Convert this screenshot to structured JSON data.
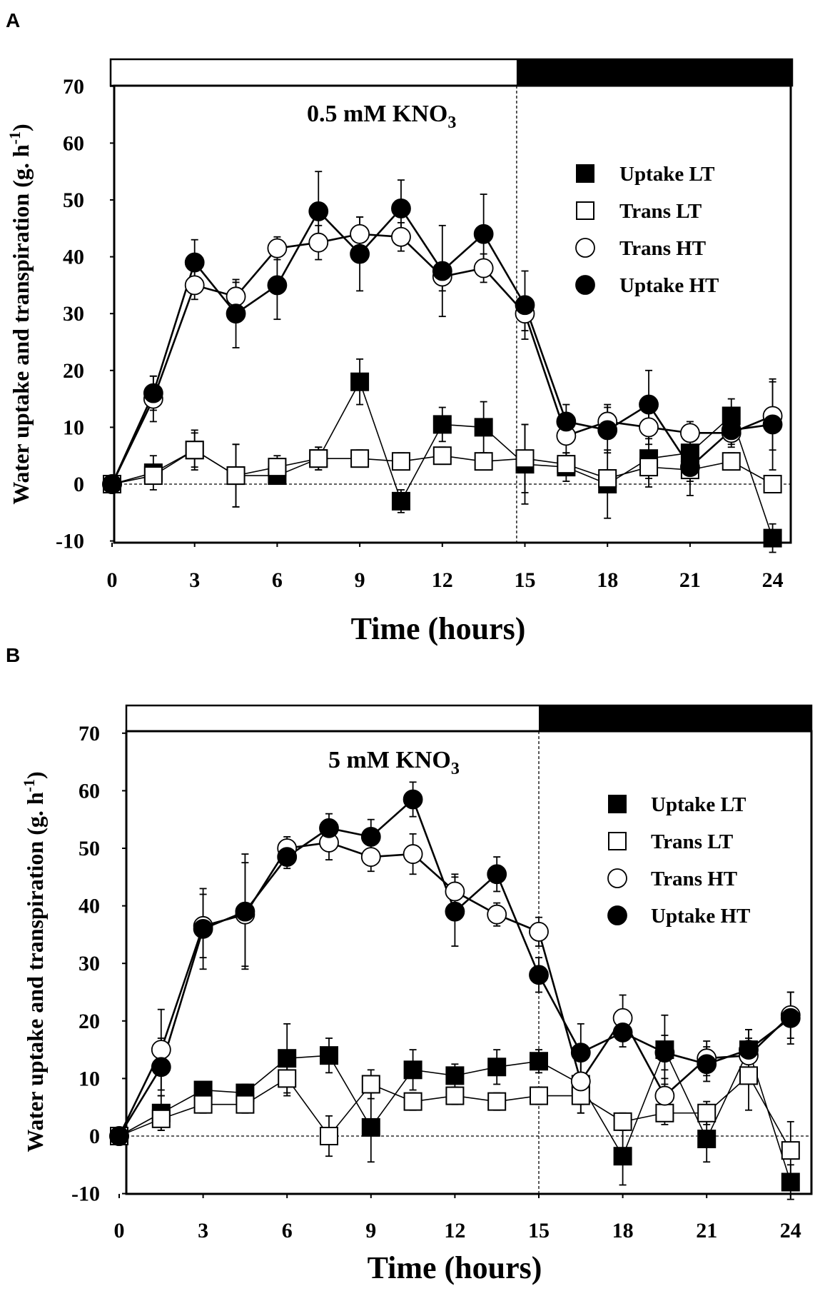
{
  "figure": {
    "panel_labels": [
      "A",
      "B"
    ]
  },
  "colors": {
    "ink": "#000000",
    "paper": "#ffffff"
  },
  "chart_data": [
    {
      "panel": "A",
      "type": "line",
      "annotation": "0.5 mM KNO",
      "annotation_sub": "3",
      "xlabel": "Time (hours)",
      "ylabel": "Water uptake and transpiration (g. h",
      "ylabel_sup": "-1",
      "ylabel_close": ")",
      "xlim": [
        0,
        24
      ],
      "ylim": [
        -10,
        70
      ],
      "xticks": [
        0,
        3,
        6,
        9,
        12,
        15,
        18,
        21,
        24
      ],
      "yticks": [
        -10,
        0,
        10,
        20,
        30,
        40,
        50,
        60,
        70
      ],
      "light_period": [
        0,
        14.7
      ],
      "dark_period": [
        14.7,
        24.3
      ],
      "divider_x": 14.7,
      "x": [
        0,
        1.5,
        3,
        4.5,
        6,
        7.5,
        9,
        10.5,
        12,
        13.5,
        15,
        16.5,
        18,
        19.5,
        21,
        22.5,
        24
      ],
      "series": [
        {
          "name": "Uptake  LT",
          "marker": "square-filled",
          "values": [
            0,
            2,
            6,
            1.5,
            1.5,
            4.5,
            18,
            -3,
            10.5,
            10,
            3.5,
            3,
            0,
            4.5,
            5.5,
            12,
            -9.5
          ],
          "errors": [
            0,
            3,
            3,
            5.5,
            1.5,
            2,
            4,
            2,
            3,
            4.5,
            7,
            2.5,
            6,
            5,
            4,
            3,
            2.5
          ]
        },
        {
          "name": "Trans LT",
          "marker": "square-open",
          "values": [
            0,
            1.5,
            6,
            1.5,
            3,
            4.5,
            4.5,
            4,
            5,
            4,
            4.5,
            3.5,
            1,
            3,
            2.5,
            4,
            0
          ],
          "errors": [
            0,
            1.5,
            3.5,
            5.5,
            2,
            2,
            1.5,
            1.5,
            1.5,
            1.5,
            6,
            2,
            1.5,
            2,
            2,
            1.5,
            1
          ]
        },
        {
          "name": "Trans HT",
          "marker": "circle-open",
          "values": [
            0,
            15,
            35,
            33,
            41.5,
            42.5,
            44,
            43.5,
            36.5,
            38,
            30,
            8.5,
            11,
            10,
            9,
            9,
            12
          ],
          "errors": [
            0,
            4,
            2.5,
            2.5,
            2,
            3,
            3,
            2.5,
            2.5,
            2.5,
            3,
            4,
            3,
            3,
            2,
            2,
            6
          ]
        },
        {
          "name": "Uptake  HT",
          "marker": "circle-filled",
          "values": [
            0,
            16,
            39,
            30,
            35,
            48,
            40.5,
            48.5,
            37.5,
            44,
            31.5,
            11,
            9.5,
            14,
            3,
            9.5,
            10.5
          ],
          "errors": [
            0,
            3,
            4,
            6,
            6,
            7,
            6.5,
            5,
            8,
            7,
            6,
            3,
            4,
            6,
            5,
            3,
            8
          ]
        }
      ]
    },
    {
      "panel": "B",
      "type": "line",
      "annotation": "5 mM KNO",
      "annotation_sub": "3",
      "xlabel": "Time (hours)",
      "ylabel": "Water uptake and transpiration (g. h",
      "ylabel_sup": "-1",
      "ylabel_close": ")",
      "xlim": [
        0,
        24
      ],
      "ylim": [
        -10,
        70
      ],
      "xticks": [
        0,
        3,
        6,
        9,
        12,
        15,
        18,
        21,
        24
      ],
      "yticks": [
        -10,
        0,
        10,
        20,
        30,
        40,
        50,
        60,
        70
      ],
      "light_period": [
        0,
        15
      ],
      "dark_period": [
        15,
        24.8
      ],
      "divider_x": 15,
      "x": [
        0,
        1.5,
        3,
        4.5,
        6,
        7.5,
        9,
        10.5,
        12,
        13.5,
        15,
        16.5,
        18,
        19.5,
        21,
        22.5,
        24
      ],
      "series": [
        {
          "name": "Uptake  LT",
          "marker": "square-filled",
          "values": [
            0,
            4,
            8,
            7.5,
            13.5,
            14,
            1.5,
            11.5,
            10.5,
            12,
            13,
            9,
            -3.5,
            15,
            -0.5,
            15,
            -8
          ],
          "errors": [
            0,
            3,
            1,
            1.5,
            6,
            3,
            6,
            3.5,
            2,
            3,
            2,
            5,
            5,
            6,
            4,
            3.5,
            3
          ]
        },
        {
          "name": "Trans LT",
          "marker": "square-open",
          "values": [
            0,
            3,
            5.5,
            5.5,
            10,
            0,
            9,
            6,
            7,
            6,
            7,
            7,
            2.5,
            4,
            4,
            10.5,
            -2.5
          ],
          "errors": [
            0,
            2,
            1.5,
            1.5,
            3,
            3.5,
            2.5,
            1.5,
            1.5,
            1.5,
            1.5,
            3,
            1.5,
            2,
            2,
            6,
            5
          ]
        },
        {
          "name": "Trans HT",
          "marker": "circle-open",
          "values": [
            0,
            15,
            36.5,
            38.5,
            50,
            51,
            48.5,
            49,
            42.5,
            38.5,
            35.5,
            9.5,
            20.5,
            7,
            13.5,
            14,
            21
          ],
          "errors": [
            0,
            7,
            5.5,
            9,
            2,
            3,
            2.5,
            3.5,
            3,
            2,
            2.5,
            4,
            4,
            3,
            3,
            3,
            4
          ]
        },
        {
          "name": "Uptake  HT",
          "marker": "circle-filled",
          "values": [
            0,
            12,
            36,
            39,
            48.5,
            53.5,
            52,
            58.5,
            39,
            45.5,
            28,
            14.5,
            18,
            14.5,
            12.5,
            15,
            20.5
          ],
          "errors": [
            0,
            5,
            7,
            10,
            2,
            2.5,
            3,
            3,
            6,
            3,
            3,
            5,
            2.5,
            3,
            3,
            3.5,
            4.5
          ]
        }
      ]
    }
  ]
}
